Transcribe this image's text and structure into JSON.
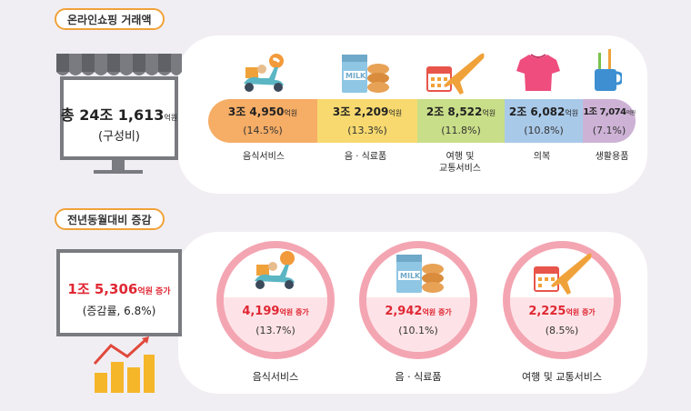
{
  "section1": {
    "title": "온라인쇼핑 거래액",
    "total_prefix": "총",
    "total_value": "24조 1,613",
    "total_unit": "억원",
    "total_note": "(구성비)",
    "categories": [
      {
        "label": "음식서비스",
        "amount": "3조 4,950",
        "unit": "억원",
        "share": "(14.5%)",
        "color": "#f6ad66",
        "icon": "scooter-delivery-icon"
      },
      {
        "label": "음 · 식료품",
        "amount": "3조 2,209",
        "unit": "억원",
        "share": "(13.3%)",
        "color": "#f7d96f",
        "icon": "milk-food-icon"
      },
      {
        "label_line1": "여행 및",
        "label_line2": "교통서비스",
        "amount": "2조 8,522",
        "unit": "억원",
        "share": "(11.8%)",
        "color": "#c9de88",
        "icon": "airplane-calendar-icon"
      },
      {
        "label": "의복",
        "amount": "2조 6,082",
        "unit": "억원",
        "share": "(10.8%)",
        "color": "#a9c9e9",
        "icon": "tshirt-icon"
      },
      {
        "label": "생활용품",
        "amount": "1조 7,074",
        "unit": "억원",
        "share": "(7.1%)",
        "color": "#cdb2d6",
        "icon": "toothbrush-cup-icon"
      }
    ]
  },
  "section2": {
    "title": "전년동월대비 증감",
    "total_value": "1조 5,306",
    "total_unit": "억원 증가",
    "total_note": "(증감률, 6.8%)",
    "items": [
      {
        "label": "음식서비스",
        "amount": "4,199",
        "unit": "억원 증가",
        "rate": "(13.7%)",
        "icon": "scooter-delivery-icon"
      },
      {
        "label": "음 · 식료품",
        "amount": "2,942",
        "unit": "억원 증가",
        "rate": "(10.1%)",
        "icon": "milk-food-icon"
      },
      {
        "label": "여행 및 교통서비스",
        "amount": "2,225",
        "unit": "억원 증가",
        "rate": "(8.5%)",
        "icon": "airplane-calendar-icon"
      }
    ]
  },
  "colors": {
    "tag_border": "#f0a23a",
    "accent_red": "#e02834",
    "monitor": "#797b80",
    "circle_border": "#f4a5b2"
  }
}
